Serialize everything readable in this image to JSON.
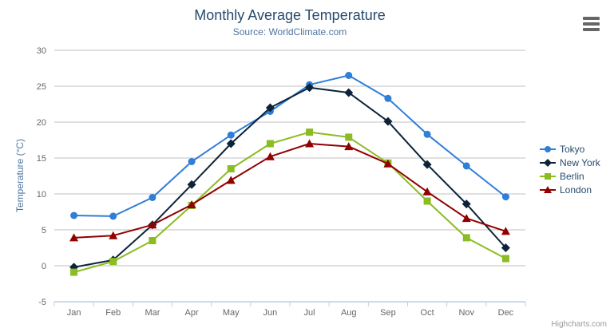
{
  "chart": {
    "credit": "Highcharts.com",
    "export_menu_icon": "hamburger-icon"
  },
  "chart_data": {
    "type": "line",
    "title": "Monthly Average Temperature",
    "subtitle": "Source: WorldClimate.com",
    "categories": [
      "Jan",
      "Feb",
      "Mar",
      "Apr",
      "May",
      "Jun",
      "Jul",
      "Aug",
      "Sep",
      "Oct",
      "Nov",
      "Dec"
    ],
    "series": [
      {
        "name": "Tokyo",
        "color": "#2f7ed8",
        "marker": "circle",
        "values": [
          7.0,
          6.9,
          9.5,
          14.5,
          18.2,
          21.5,
          25.2,
          26.5,
          23.3,
          18.3,
          13.9,
          9.6
        ]
      },
      {
        "name": "New York",
        "color": "#0d233a",
        "marker": "diamond",
        "values": [
          -0.2,
          0.8,
          5.7,
          11.3,
          17.0,
          22.0,
          24.8,
          24.1,
          20.1,
          14.1,
          8.6,
          2.5
        ]
      },
      {
        "name": "Berlin",
        "color": "#8bbc21",
        "marker": "square",
        "values": [
          -0.9,
          0.6,
          3.5,
          8.4,
          13.5,
          17.0,
          18.6,
          17.9,
          14.3,
          9.0,
          3.9,
          1.0
        ]
      },
      {
        "name": "London",
        "color": "#910000",
        "marker": "triangle",
        "values": [
          3.9,
          4.2,
          5.7,
          8.5,
          11.9,
          15.2,
          17.0,
          16.6,
          14.2,
          10.3,
          6.6,
          4.8
        ]
      }
    ],
    "xlabel": "",
    "ylabel": "Temperature (°C)",
    "ylim": [
      -5,
      30
    ],
    "ytick_step": 5,
    "grid": true,
    "legend_position": "right"
  },
  "colors": {
    "title": "#274b6d",
    "subtitle": "#4d759e",
    "axis_label": "#666666",
    "axis_title": "#4d759e",
    "gridline": "#c0c0c0",
    "axis_line": "#c0d0e0",
    "legend_text": "#274b6d",
    "credit": "#999999",
    "menu_icon": "#666666"
  }
}
